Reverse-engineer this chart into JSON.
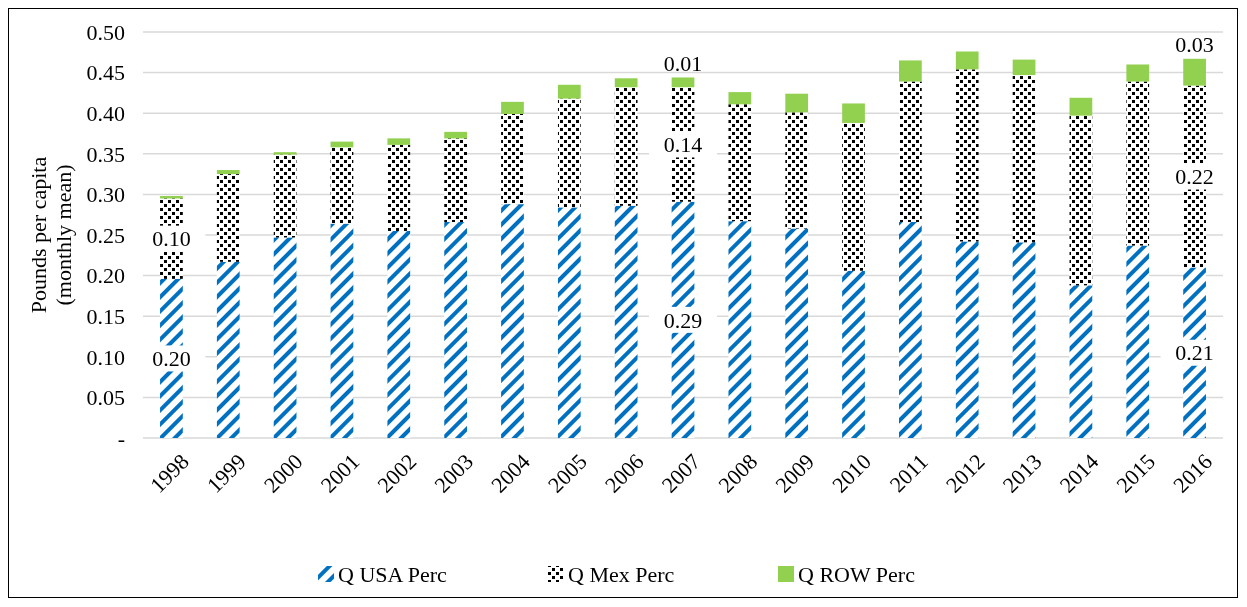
{
  "chart_data": {
    "type": "bar",
    "stacked": true,
    "ylabel": "Pounds per capita (monthly mean)",
    "categories": [
      "1998",
      "1999",
      "2000",
      "2001",
      "2002",
      "2003",
      "2004",
      "2005",
      "2006",
      "2007",
      "2008",
      "2009",
      "2010",
      "2011",
      "2012",
      "2013",
      "2014",
      "2015",
      "2016"
    ],
    "series": [
      {
        "name": "Q USA Perc",
        "color": "#0070c0",
        "values": [
          0.196,
          0.217,
          0.247,
          0.264,
          0.255,
          0.266,
          0.288,
          0.284,
          0.286,
          0.291,
          0.267,
          0.258,
          0.206,
          0.266,
          0.242,
          0.241,
          0.188,
          0.237,
          0.21
        ],
        "value_labels": [
          "0.20",
          null,
          null,
          null,
          null,
          null,
          null,
          null,
          null,
          "0.29",
          null,
          null,
          null,
          null,
          null,
          null,
          null,
          null,
          "0.21"
        ]
      },
      {
        "name": "Q Mex Perc",
        "color": "#000000",
        "values": [
          0.099,
          0.108,
          0.102,
          0.094,
          0.106,
          0.103,
          0.111,
          0.134,
          0.146,
          0.141,
          0.144,
          0.143,
          0.182,
          0.173,
          0.212,
          0.206,
          0.209,
          0.202,
          0.224
        ],
        "value_labels": [
          "0.10",
          null,
          null,
          null,
          null,
          null,
          null,
          null,
          null,
          "0.14",
          null,
          null,
          null,
          null,
          null,
          null,
          null,
          null,
          "0.22"
        ]
      },
      {
        "name": "Q ROW Perc",
        "color": "#92d050",
        "values": [
          0.003,
          0.005,
          0.003,
          0.007,
          0.008,
          0.008,
          0.015,
          0.017,
          0.011,
          0.012,
          0.015,
          0.023,
          0.024,
          0.026,
          0.022,
          0.019,
          0.022,
          0.021,
          0.033
        ],
        "value_labels": [
          null,
          null,
          null,
          null,
          null,
          null,
          null,
          null,
          null,
          "0.01",
          null,
          null,
          null,
          null,
          null,
          null,
          null,
          null,
          "0.03"
        ]
      }
    ],
    "ylim": [
      0,
      0.5
    ],
    "yticks": [
      {
        "value": 0,
        "label": "-"
      },
      {
        "value": 0.05,
        "label": "0.05"
      },
      {
        "value": 0.1,
        "label": "0.10"
      },
      {
        "value": 0.15,
        "label": "0.15"
      },
      {
        "value": 0.2,
        "label": "0.20"
      },
      {
        "value": 0.25,
        "label": "0.25"
      },
      {
        "value": 0.3,
        "label": "0.30"
      },
      {
        "value": 0.35,
        "label": "0.35"
      },
      {
        "value": 0.4,
        "label": "0.40"
      },
      {
        "value": 0.45,
        "label": "0.45"
      },
      {
        "value": 0.5,
        "label": "0.50"
      }
    ],
    "grid": "y",
    "legend": "bottom"
  }
}
